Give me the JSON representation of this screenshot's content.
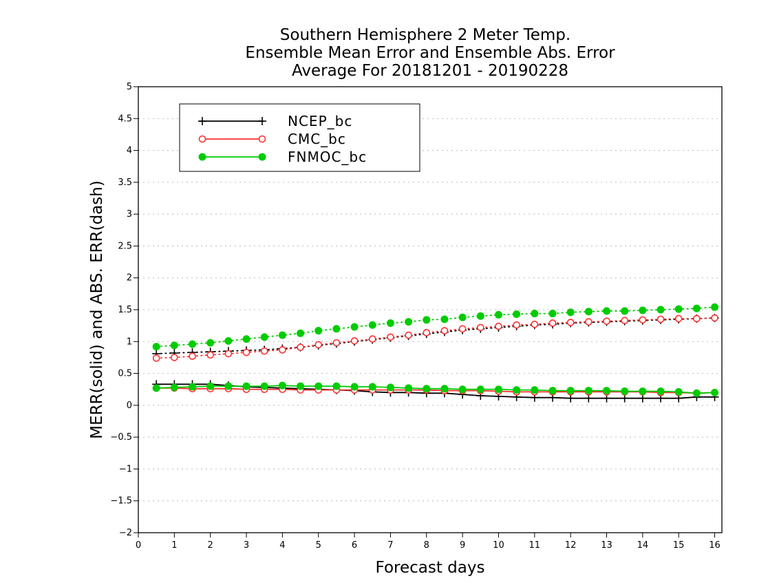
{
  "chart_data": {
    "type": "line",
    "title": [
      "Southern Hemisphere 2 Meter Temp.",
      "Ensemble Mean Error and Ensemble Abs. Error",
      "Average For 20181201 - 20190228"
    ],
    "xlabel": "Forecast days",
    "ylabel": "MERR(solid) and ABS. ERR(dash)",
    "xlim": [
      0,
      16.2
    ],
    "ylim": [
      -2,
      5
    ],
    "xticks": [
      "0",
      "1",
      "2",
      "3",
      "4",
      "5",
      "6",
      "7",
      "8",
      "9",
      "10",
      "11",
      "12",
      "13",
      "14",
      "15",
      "16"
    ],
    "yticks": [
      "5",
      "4.5",
      "4",
      "3.5",
      "3",
      "2.5",
      "2",
      "1.5",
      "1",
      "0.5",
      "0",
      "−0.5",
      "−1",
      "−1.5",
      "−2"
    ],
    "grid": true,
    "legend_position": "top-left",
    "x": [
      0.5,
      1,
      1.5,
      2,
      2.5,
      3,
      3.5,
      4,
      4.5,
      5,
      5.5,
      6,
      6.5,
      7,
      7.5,
      8,
      8.5,
      9,
      9.5,
      10,
      10.5,
      11,
      11.5,
      12,
      12.5,
      13,
      13.5,
      14,
      14.5,
      15,
      15.5,
      16
    ],
    "series": [
      {
        "name": "NCEP_bc",
        "color": "#000000",
        "marker": "plus",
        "mean_error": [
          0.33,
          0.33,
          0.33,
          0.33,
          0.31,
          0.29,
          0.28,
          0.27,
          0.26,
          0.25,
          0.24,
          0.23,
          0.21,
          0.2,
          0.2,
          0.19,
          0.19,
          0.17,
          0.15,
          0.14,
          0.13,
          0.12,
          0.12,
          0.11,
          0.11,
          0.11,
          0.11,
          0.11,
          0.11,
          0.11,
          0.13,
          0.13
        ],
        "abs_error": [
          0.81,
          0.82,
          0.83,
          0.84,
          0.85,
          0.86,
          0.87,
          0.89,
          0.91,
          0.94,
          0.97,
          1.0,
          1.03,
          1.06,
          1.09,
          1.12,
          1.15,
          1.18,
          1.2,
          1.22,
          1.24,
          1.26,
          1.27,
          1.29,
          1.3,
          1.31,
          1.32,
          1.33,
          1.34,
          1.35,
          1.36,
          1.37
        ]
      },
      {
        "name": "CMC_bc",
        "color": "#ff3030",
        "marker": "open-circle",
        "mean_error": [
          0.27,
          0.27,
          0.26,
          0.26,
          0.26,
          0.25,
          0.25,
          0.25,
          0.24,
          0.24,
          0.24,
          0.24,
          0.24,
          0.24,
          0.24,
          0.24,
          0.23,
          0.23,
          0.23,
          0.22,
          0.21,
          0.21,
          0.21,
          0.21,
          0.21,
          0.21,
          0.21,
          0.21,
          0.2,
          0.2,
          0.19,
          0.2
        ],
        "abs_error": [
          0.74,
          0.75,
          0.77,
          0.79,
          0.81,
          0.83,
          0.85,
          0.87,
          0.91,
          0.95,
          0.98,
          1.01,
          1.04,
          1.07,
          1.1,
          1.14,
          1.17,
          1.2,
          1.22,
          1.24,
          1.26,
          1.27,
          1.29,
          1.3,
          1.31,
          1.32,
          1.33,
          1.34,
          1.35,
          1.36,
          1.36,
          1.37
        ]
      },
      {
        "name": "FNMOC_bc",
        "color": "#00cc00",
        "marker": "filled-circle",
        "mean_error": [
          0.27,
          0.28,
          0.29,
          0.3,
          0.3,
          0.3,
          0.3,
          0.31,
          0.3,
          0.3,
          0.3,
          0.29,
          0.29,
          0.28,
          0.27,
          0.26,
          0.26,
          0.25,
          0.25,
          0.25,
          0.24,
          0.24,
          0.23,
          0.23,
          0.23,
          0.23,
          0.22,
          0.22,
          0.22,
          0.21,
          0.19,
          0.2
        ],
        "abs_error": [
          0.92,
          0.94,
          0.96,
          0.98,
          1.01,
          1.04,
          1.07,
          1.1,
          1.13,
          1.17,
          1.2,
          1.23,
          1.26,
          1.29,
          1.31,
          1.34,
          1.35,
          1.38,
          1.4,
          1.42,
          1.43,
          1.44,
          1.44,
          1.46,
          1.47,
          1.48,
          1.48,
          1.49,
          1.5,
          1.51,
          1.52,
          1.54
        ]
      }
    ]
  }
}
